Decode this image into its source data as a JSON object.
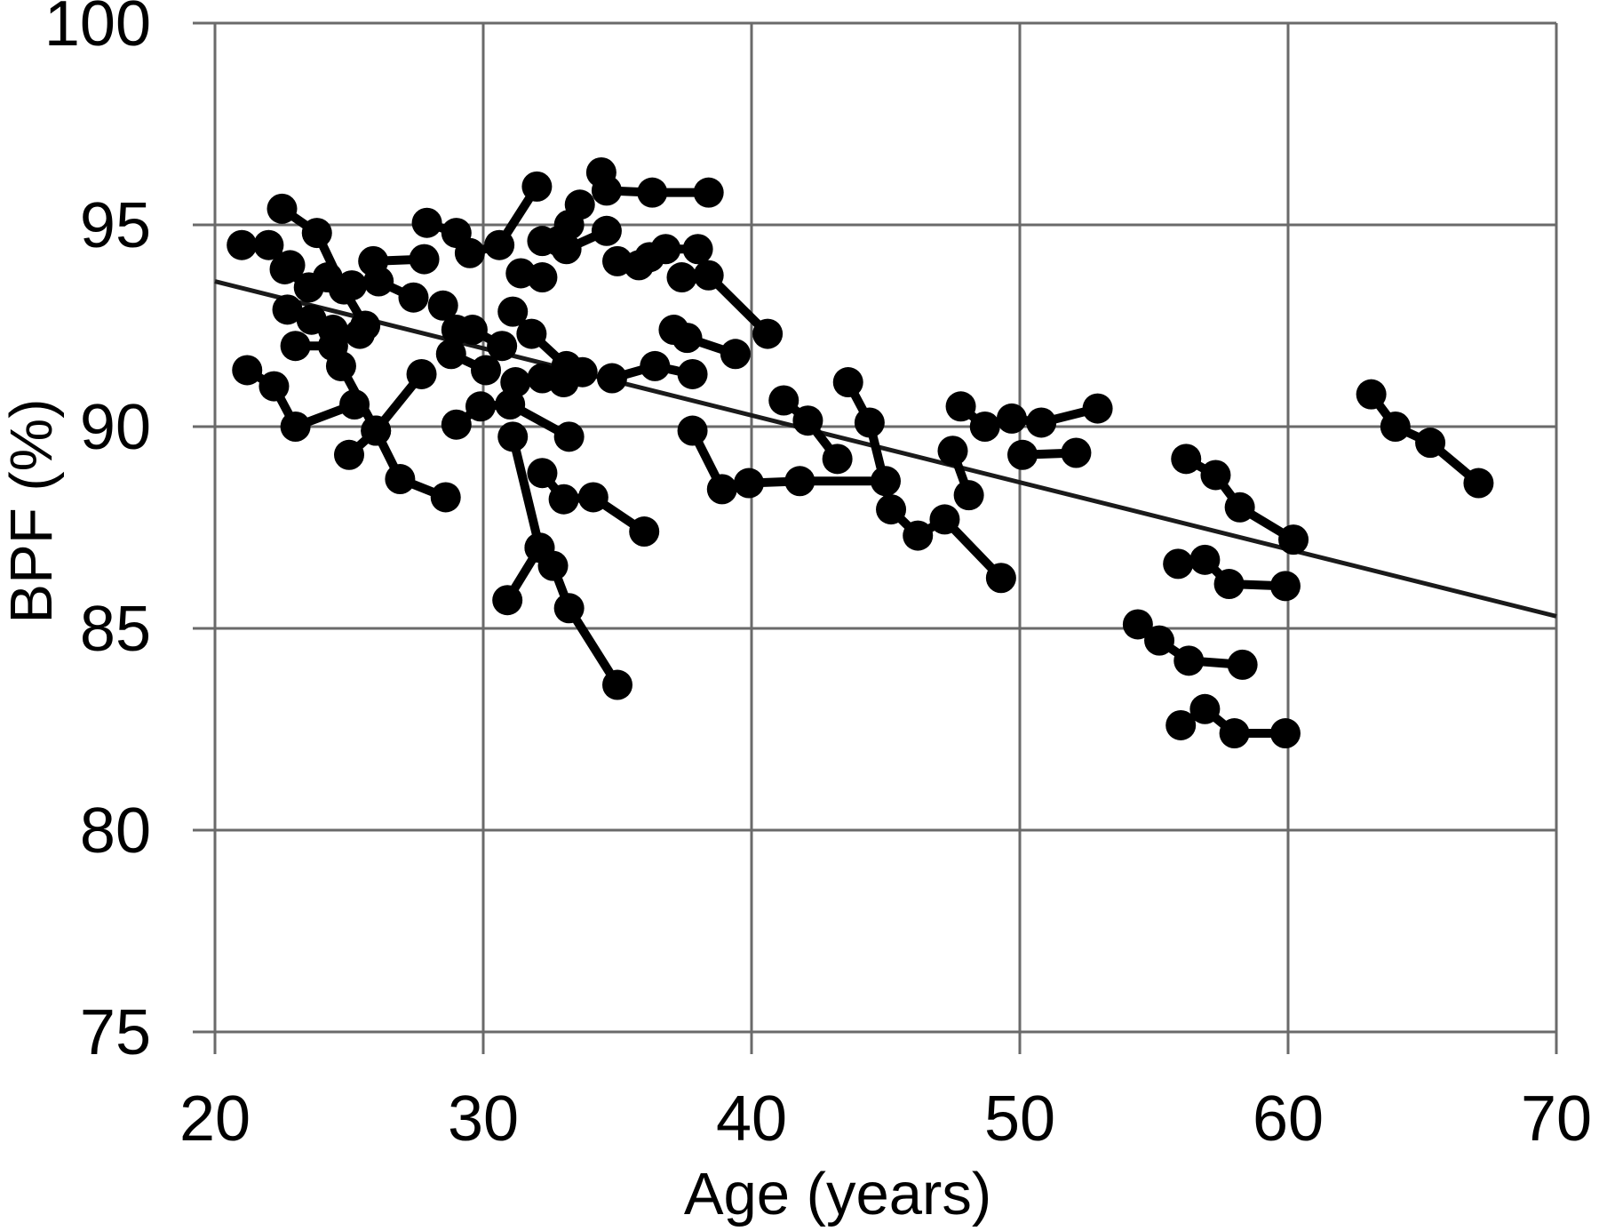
{
  "figure": {
    "background": "#ffffff",
    "marker_color": "#000000",
    "line_color": "#000000",
    "trend_color": "#1a1a1a",
    "grid_color": "#6a6a6a"
  },
  "chart_data": {
    "type": "line",
    "title": "",
    "xlabel": "Age (years)",
    "ylabel": "BPF (%)",
    "xlim": [
      20,
      70
    ],
    "ylim": [
      75,
      100
    ],
    "xticks": [
      20,
      30,
      40,
      50,
      60,
      70
    ],
    "yticks": [
      75,
      80,
      85,
      90,
      95,
      100
    ],
    "grid": true,
    "legend_position": "none",
    "description": "Individual subject trajectories of brain parenchymal fraction (BPF %) versus age, each polyline one subject, with linear trend line",
    "trend_line": {
      "x": [
        20,
        70
      ],
      "y": [
        93.6,
        85.3
      ]
    },
    "series": [
      {
        "points": [
          [
            21.0,
            94.5
          ],
          [
            22.0,
            94.5
          ],
          [
            22.8,
            94.0
          ]
        ]
      },
      {
        "points": [
          [
            22.5,
            95.4
          ],
          [
            23.8,
            94.8
          ],
          [
            24.8,
            93.4
          ],
          [
            25.6,
            92.5
          ]
        ]
      },
      {
        "points": [
          [
            21.2,
            91.4
          ],
          [
            22.2,
            91.0
          ],
          [
            23.0,
            90.0
          ],
          [
            25.2,
            90.55
          ]
        ]
      },
      {
        "points": [
          [
            22.6,
            93.9
          ],
          [
            23.5,
            93.45
          ],
          [
            24.2,
            93.7
          ]
        ]
      },
      {
        "points": [
          [
            22.7,
            92.9
          ],
          [
            23.6,
            92.65
          ],
          [
            24.4,
            92.4
          ],
          [
            25.4,
            92.3
          ]
        ]
      },
      {
        "points": [
          [
            23.0,
            92.0
          ],
          [
            24.4,
            92.0
          ]
        ]
      },
      {
        "points": [
          [
            25.9,
            94.1
          ],
          [
            27.8,
            94.15
          ]
        ]
      },
      {
        "points": [
          [
            25.1,
            93.5
          ],
          [
            26.1,
            93.6
          ],
          [
            27.4,
            93.2
          ]
        ]
      },
      {
        "points": [
          [
            27.9,
            95.05
          ],
          [
            29.0,
            94.8
          ],
          [
            29.5,
            94.3
          ],
          [
            30.6,
            94.5
          ],
          [
            32.0,
            95.95
          ]
        ]
      },
      {
        "points": [
          [
            34.4,
            96.3
          ],
          [
            34.6,
            95.85
          ],
          [
            36.3,
            95.8
          ],
          [
            38.4,
            95.8
          ]
        ]
      },
      {
        "points": [
          [
            32.8,
            94.6
          ],
          [
            33.2,
            95.0
          ],
          [
            33.6,
            95.5
          ]
        ]
      },
      {
        "points": [
          [
            32.2,
            94.6
          ],
          [
            33.1,
            94.4
          ],
          [
            34.6,
            94.85
          ]
        ]
      },
      {
        "points": [
          [
            35.0,
            94.1
          ],
          [
            35.8,
            94.0
          ],
          [
            36.2,
            94.2
          ]
        ]
      },
      {
        "points": [
          [
            36.8,
            94.4
          ],
          [
            38.0,
            94.4
          ]
        ]
      },
      {
        "points": [
          [
            37.4,
            93.7
          ],
          [
            38.4,
            93.75
          ],
          [
            40.6,
            92.3
          ]
        ]
      },
      {
        "points": [
          [
            31.4,
            93.8
          ],
          [
            32.2,
            93.7
          ]
        ]
      },
      {
        "points": [
          [
            28.5,
            93.0
          ],
          [
            29.0,
            92.4
          ],
          [
            29.6,
            92.4
          ],
          [
            30.7,
            92.0
          ]
        ]
      },
      {
        "points": [
          [
            31.1,
            92.85
          ],
          [
            31.8,
            92.3
          ],
          [
            33.1,
            91.5
          ]
        ]
      },
      {
        "points": [
          [
            31.2,
            91.1
          ],
          [
            32.2,
            91.2
          ],
          [
            33.0,
            91.1
          ],
          [
            33.7,
            91.35
          ]
        ]
      },
      {
        "points": [
          [
            34.8,
            91.2
          ],
          [
            36.4,
            91.5
          ],
          [
            37.8,
            91.3
          ]
        ]
      },
      {
        "points": [
          [
            28.8,
            91.8
          ],
          [
            30.1,
            91.4
          ]
        ]
      },
      {
        "points": [
          [
            29.0,
            90.05
          ],
          [
            29.9,
            90.5
          ],
          [
            31.0,
            90.55
          ],
          [
            33.2,
            89.75
          ]
        ]
      },
      {
        "points": [
          [
            24.7,
            91.5
          ],
          [
            26.0,
            89.9
          ],
          [
            26.9,
            88.7
          ],
          [
            28.6,
            88.25
          ]
        ]
      },
      {
        "points": [
          [
            25.0,
            89.3
          ],
          [
            26.0,
            89.9
          ],
          [
            27.7,
            91.3
          ]
        ]
      },
      {
        "points": [
          [
            31.1,
            89.75
          ],
          [
            32.1,
            87.0
          ],
          [
            32.6,
            86.55
          ],
          [
            33.2,
            85.5
          ],
          [
            35.0,
            83.6
          ]
        ]
      },
      {
        "points": [
          [
            30.9,
            85.7
          ],
          [
            32.1,
            87.0
          ]
        ]
      },
      {
        "points": [
          [
            32.2,
            88.85
          ],
          [
            33.0,
            88.2
          ],
          [
            34.1,
            88.25
          ],
          [
            36.0,
            87.4
          ]
        ]
      },
      {
        "points": [
          [
            37.8,
            89.9
          ],
          [
            38.9,
            88.45
          ],
          [
            39.9,
            88.6
          ],
          [
            41.8,
            88.65
          ],
          [
            45.0,
            88.65
          ]
        ]
      },
      {
        "points": [
          [
            37.1,
            92.4
          ],
          [
            37.6,
            92.2
          ],
          [
            39.4,
            91.8
          ]
        ]
      },
      {
        "points": [
          [
            41.2,
            90.65
          ],
          [
            42.1,
            90.15
          ],
          [
            43.2,
            89.2
          ]
        ]
      },
      {
        "points": [
          [
            43.6,
            91.1
          ],
          [
            44.4,
            90.1
          ],
          [
            45.2,
            87.95
          ],
          [
            46.2,
            87.3
          ],
          [
            47.2,
            87.7
          ],
          [
            49.3,
            86.25
          ]
        ]
      },
      {
        "points": [
          [
            47.5,
            89.4
          ],
          [
            48.1,
            88.3
          ]
        ]
      },
      {
        "points": [
          [
            47.8,
            90.5
          ],
          [
            48.7,
            90.0
          ]
        ]
      },
      {
        "points": [
          [
            49.7,
            90.2
          ],
          [
            50.8,
            90.1
          ],
          [
            52.9,
            90.45
          ]
        ]
      },
      {
        "points": [
          [
            50.1,
            89.3
          ],
          [
            52.1,
            89.35
          ]
        ]
      },
      {
        "points": [
          [
            56.2,
            89.2
          ],
          [
            57.3,
            88.8
          ],
          [
            58.2,
            88.0
          ],
          [
            60.2,
            87.2
          ]
        ]
      },
      {
        "points": [
          [
            55.9,
            86.6
          ],
          [
            56.9,
            86.7
          ],
          [
            57.8,
            86.1
          ],
          [
            59.9,
            86.05
          ]
        ]
      },
      {
        "points": [
          [
            54.4,
            85.1
          ],
          [
            55.2,
            84.7
          ],
          [
            56.3,
            84.2
          ],
          [
            58.3,
            84.1
          ]
        ]
      },
      {
        "points": [
          [
            56.0,
            82.6
          ],
          [
            56.9,
            83.0
          ],
          [
            58.0,
            82.4
          ],
          [
            59.9,
            82.4
          ]
        ]
      },
      {
        "points": [
          [
            63.1,
            90.8
          ],
          [
            64.0,
            90.0
          ],
          [
            65.3,
            89.6
          ],
          [
            67.1,
            88.6
          ]
        ]
      }
    ]
  }
}
